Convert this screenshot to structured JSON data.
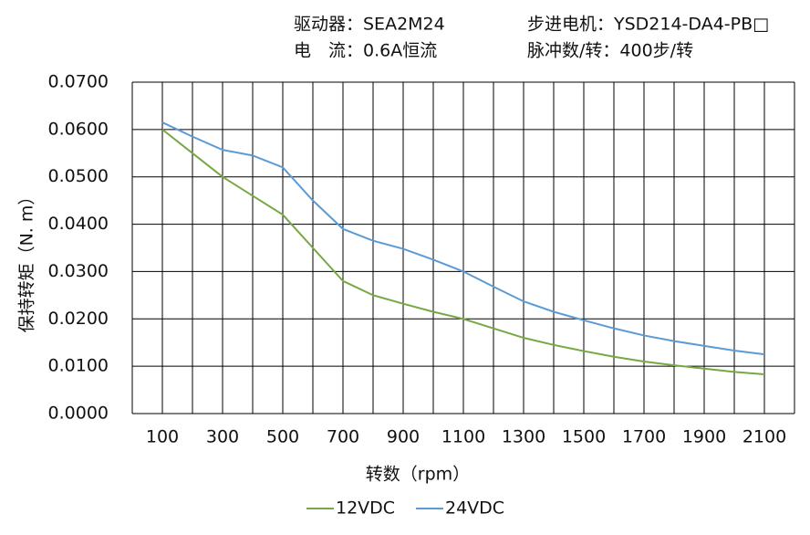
{
  "chart_data": {
    "type": "line",
    "header": [
      "驱动器：SEA2M24",
      "步进电机：YSD214-DA4-PB□",
      "电　流：0.6A恒流",
      "脉冲数/转：400步/转"
    ],
    "xlabel": "转数（rpm）",
    "ylabel": "保持转矩（N. m）",
    "x": [
      100,
      200,
      300,
      400,
      500,
      600,
      700,
      800,
      900,
      1000,
      1100,
      1200,
      1300,
      1400,
      1500,
      1600,
      1700,
      1800,
      1900,
      2000,
      2100
    ],
    "series": [
      {
        "name": "12VDC",
        "color": "#77a843",
        "values": [
          0.06,
          0.055,
          0.05,
          0.046,
          0.042,
          0.035,
          0.028,
          0.025,
          0.0232,
          0.0215,
          0.02,
          0.018,
          0.016,
          0.0145,
          0.0132,
          0.012,
          0.011,
          0.0102,
          0.0095,
          0.0088,
          0.0083
        ]
      },
      {
        "name": "24VDC",
        "color": "#5b9bd5",
        "values": [
          0.0615,
          0.0585,
          0.0557,
          0.0545,
          0.052,
          0.045,
          0.039,
          0.0365,
          0.0348,
          0.0325,
          0.03,
          0.0268,
          0.0237,
          0.0215,
          0.0197,
          0.018,
          0.0165,
          0.0153,
          0.0143,
          0.0133,
          0.0125
        ]
      }
    ],
    "xlim": [
      0,
      2200
    ],
    "xticks": [
      100,
      300,
      500,
      700,
      900,
      1100,
      1300,
      1500,
      1700,
      1900,
      2100
    ],
    "xgrid": [
      0,
      100,
      200,
      300,
      400,
      500,
      600,
      700,
      800,
      900,
      1000,
      1100,
      1200,
      1300,
      1400,
      1500,
      1600,
      1700,
      1800,
      1900,
      2000,
      2100,
      2200
    ],
    "ylim": [
      0,
      0.07
    ],
    "yticks": [
      {
        "value": 0,
        "label": "0.0000"
      },
      {
        "value": 0.01,
        "label": "0.0100"
      },
      {
        "value": 0.02,
        "label": "0.0200"
      },
      {
        "value": 0.03,
        "label": "0.0300"
      },
      {
        "value": 0.04,
        "label": "0.0400"
      },
      {
        "value": 0.05,
        "label": "0.0500"
      },
      {
        "value": 0.06,
        "label": "0.0600"
      },
      {
        "value": 0.07,
        "label": "0.0700"
      }
    ],
    "grid": true,
    "legend": "bottom"
  }
}
